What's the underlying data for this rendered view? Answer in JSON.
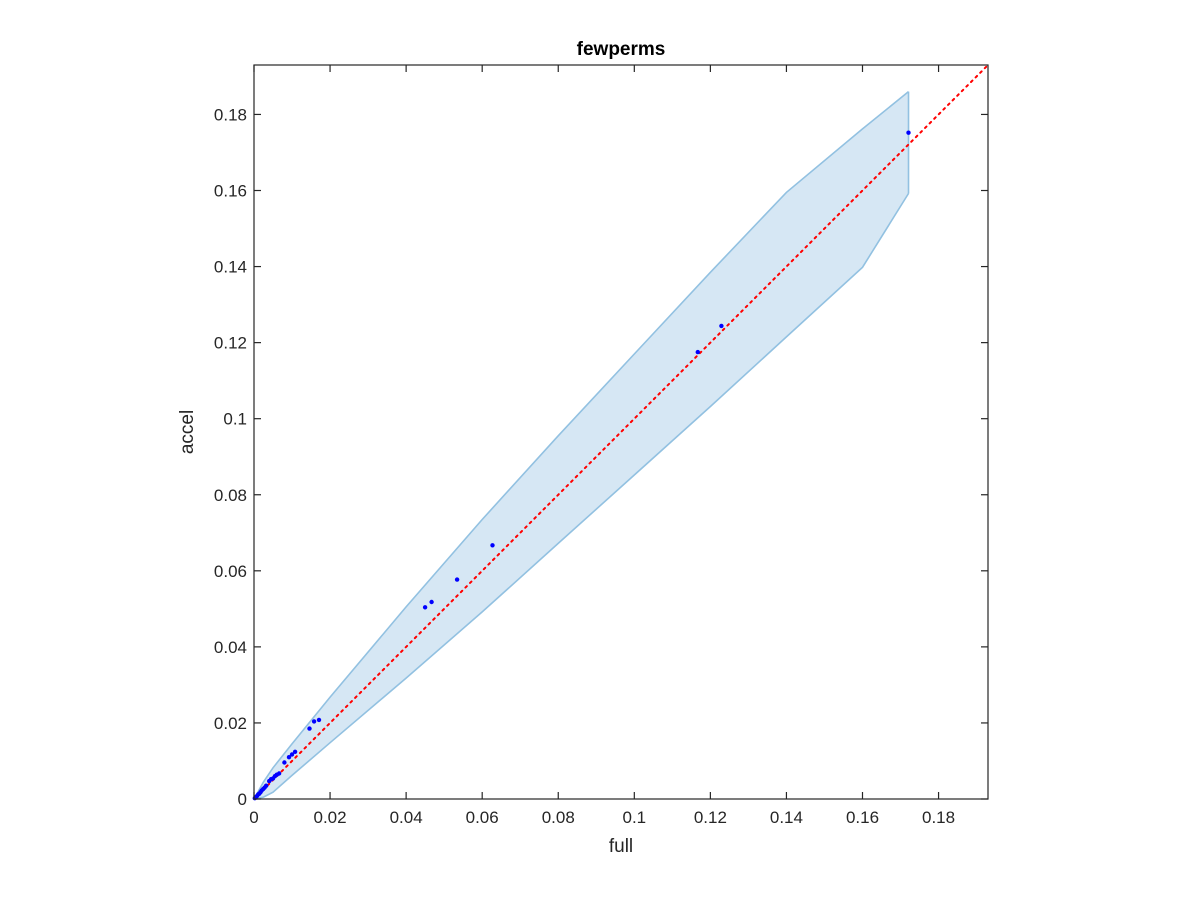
{
  "chart_data": {
    "type": "scatter",
    "title": "fewperms",
    "xlabel": "full",
    "ylabel": "accel",
    "xlim": [
      0,
      0.193
    ],
    "ylim": [
      0,
      0.193
    ],
    "xticks": [
      0,
      0.02,
      0.04,
      0.06,
      0.08,
      0.1,
      0.12,
      0.14,
      0.16,
      0.18
    ],
    "xtick_labels": [
      "0",
      "0.02",
      "0.04",
      "0.06",
      "0.08",
      "0.1",
      "0.12",
      "0.14",
      "0.16",
      "0.18"
    ],
    "yticks": [
      0,
      0.02,
      0.04,
      0.06,
      0.08,
      0.1,
      0.12,
      0.14,
      0.16,
      0.18
    ],
    "ytick_labels": [
      "0",
      "0.02",
      "0.04",
      "0.06",
      "0.08",
      "0.1",
      "0.12",
      "0.14",
      "0.16",
      "0.18"
    ],
    "grid": false,
    "legend": "none",
    "colors": {
      "points": "#0000ff",
      "identity_line": "#ff0000",
      "band_fill": "#d6e7f4",
      "band_edge": "#92c1e1",
      "axes": "#262626"
    },
    "points": {
      "x": [
        0.0002,
        0.0005,
        0.0008,
        0.0011,
        0.0014,
        0.0017,
        0.002,
        0.0024,
        0.0028,
        0.0032,
        0.004,
        0.0045,
        0.005,
        0.0055,
        0.006,
        0.0066,
        0.008,
        0.0092,
        0.01,
        0.0108,
        0.0146,
        0.0158,
        0.0171,
        0.045,
        0.0467,
        0.0534,
        0.0627,
        0.1167,
        0.1229,
        0.1721
      ],
      "y": [
        0.0002,
        0.0005,
        0.0008,
        0.0012,
        0.0014,
        0.0018,
        0.0022,
        0.0026,
        0.003,
        0.0035,
        0.0047,
        0.0052,
        0.0054,
        0.006,
        0.0064,
        0.0067,
        0.0096,
        0.011,
        0.0117,
        0.0124,
        0.0185,
        0.0204,
        0.0208,
        0.0504,
        0.0518,
        0.0577,
        0.0667,
        0.1175,
        0.1244,
        0.1752
      ]
    },
    "identity_line": {
      "x": [
        0,
        0.193
      ],
      "y": [
        0,
        0.193
      ],
      "style": "dotted"
    },
    "band": {
      "x": [
        0,
        0.0025,
        0.005,
        0.01,
        0.02,
        0.04,
        0.06,
        0.08,
        0.1,
        0.12,
        0.14,
        0.16,
        0.1721
      ],
      "upper": [
        0,
        0.0045,
        0.0082,
        0.0145,
        0.0268,
        0.0505,
        0.0735,
        0.0955,
        0.117,
        0.1385,
        0.1595,
        0.1762,
        0.186
      ],
      "lower": [
        0,
        0.0005,
        0.0018,
        0.0062,
        0.0148,
        0.0318,
        0.0492,
        0.0672,
        0.0852,
        0.1032,
        0.1215,
        0.1398,
        0.1592
      ]
    }
  }
}
